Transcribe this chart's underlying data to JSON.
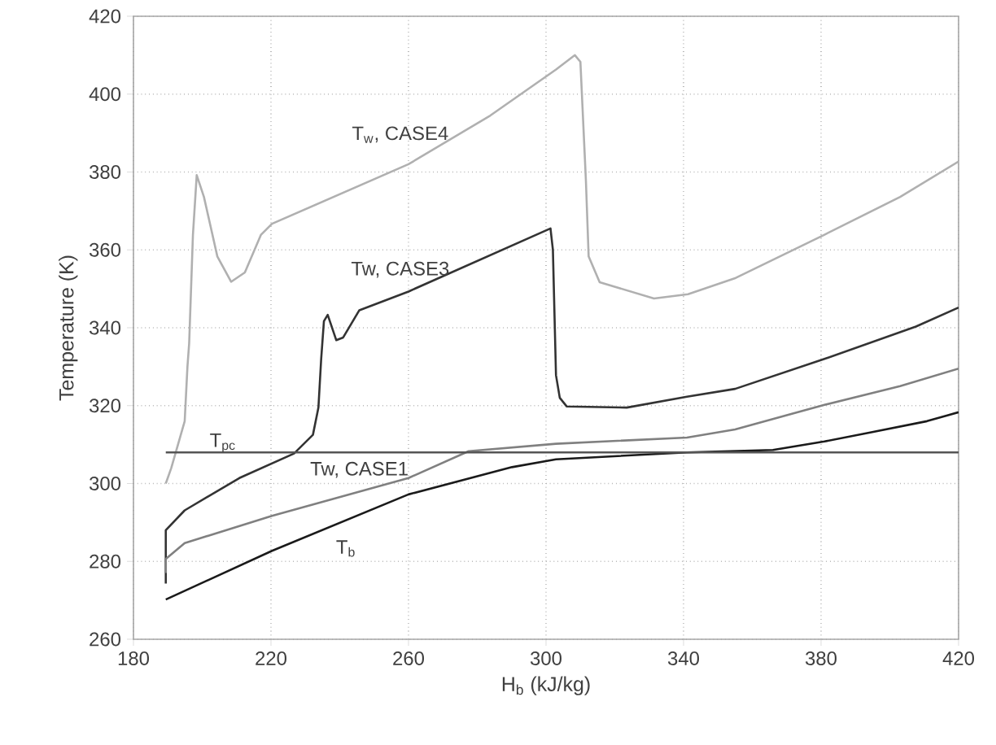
{
  "chart_data": {
    "type": "line",
    "xlabel": "H$_{b}$ (kJ/kg)",
    "ylabel": "Temperature (K)",
    "xlim": [
      180,
      420
    ],
    "ylim": [
      260,
      420
    ],
    "xticks": [
      180,
      220,
      260,
      300,
      340,
      380,
      420
    ],
    "yticks": [
      260,
      280,
      300,
      320,
      340,
      360,
      380,
      400,
      420
    ],
    "grid": true,
    "marker": "none",
    "line_style": "solid",
    "series": [
      {
        "name": "T$_{w}$, CASE4",
        "color": "#b0b0b0",
        "x": [
          189.4,
          191,
          194.9,
          195.7,
          196.2,
          197.3,
          198.4,
          200.5,
          204.4,
          208.4,
          212.4,
          217.1,
          220.3,
          260,
          283.8,
          302.9,
          308.4,
          310,
          311.6,
          312.4,
          315.6,
          331.4,
          341.3,
          355.2,
          381,
          403,
          420
        ],
        "values": [
          300,
          304,
          316,
          330,
          336,
          363.9,
          379.2,
          373.6,
          358.3,
          351.8,
          354.2,
          363.9,
          366.7,
          382,
          394.5,
          406.3,
          410,
          408.3,
          377.8,
          358.3,
          351.7,
          347.5,
          348.6,
          352.8,
          363.9,
          373.6,
          382.7
        ]
      },
      {
        "name": "Tw, CASE3",
        "color": "#333333",
        "x": [
          189.4,
          189.4,
          194.9,
          210.8,
          226.7,
          232.2,
          233.8,
          234.6,
          235.4,
          236.5,
          239,
          241,
          245.7,
          260,
          301.3,
          302,
          302.9,
          304,
          306,
          323.5,
          341,
          355,
          381,
          407.6,
          420
        ],
        "values": [
          274.3,
          288,
          293.1,
          301.4,
          307.7,
          312.5,
          319.5,
          332,
          341.7,
          343.3,
          336.8,
          337.5,
          344.5,
          349.3,
          365.5,
          360,
          327.8,
          322,
          319.8,
          319.5,
          322.3,
          324.3,
          332,
          340.3,
          345.2
        ]
      },
      {
        "name": "Tw, CASE1",
        "color": "#808080",
        "x": [
          189.4,
          189.4,
          194.9,
          220.3,
          260,
          277.5,
          302.9,
          341,
          355,
          381,
          403,
          420
        ],
        "values": [
          277,
          280.6,
          284.7,
          291.7,
          301.4,
          308.3,
          310.2,
          311.8,
          313.9,
          320.2,
          325,
          329.5
        ]
      },
      {
        "name": "T$_{b}$",
        "color": "#1a1a1a",
        "x": [
          189.4,
          220.3,
          260,
          290.1,
          302.9,
          341,
          366,
          381,
          394.9,
          410.8,
          420
        ],
        "values": [
          270.2,
          282.7,
          297.2,
          304.2,
          306.2,
          308,
          308.6,
          310.8,
          313.2,
          316,
          318.3
        ]
      },
      {
        "name": "T$_{pc}$",
        "color": "#555555",
        "x": [
          189.4,
          420
        ],
        "values": [
          308,
          308
        ]
      }
    ]
  }
}
